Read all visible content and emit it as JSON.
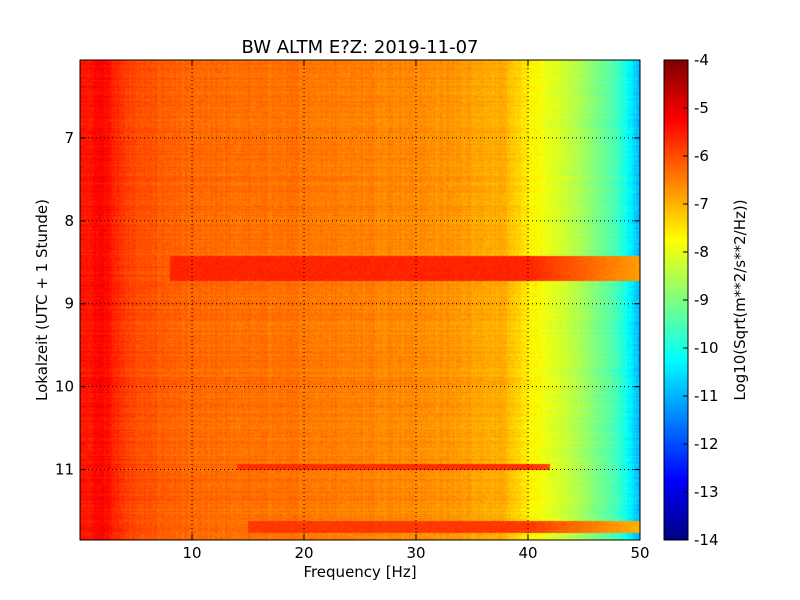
{
  "chart_data": {
    "type": "heatmap",
    "title": "BW ALTM E?Z: 2019-11-07",
    "xlabel": "Frequency [Hz]",
    "ylabel": "Lokalzeit (UTC + 1 Stunde)",
    "colorbar_label": "Log10(Sqrt(m**2/s**2/Hz))",
    "xlim": [
      0,
      50
    ],
    "ylim": [
      6.06,
      11.85
    ],
    "y_inverted": true,
    "x_ticks": [
      10,
      20,
      30,
      40,
      50
    ],
    "y_ticks": [
      7,
      8,
      9,
      10,
      11
    ],
    "color_range": [
      -14,
      -4
    ],
    "colorbar_ticks": [
      -4,
      -5,
      -6,
      -7,
      -8,
      -9,
      -10,
      -11,
      -12,
      -13,
      -14
    ],
    "colormap": "jet",
    "grid": true,
    "spectrum_profile": [
      {
        "f": 0,
        "value": -5.5
      },
      {
        "f": 1,
        "value": -5.4
      },
      {
        "f": 2,
        "value": -5.2
      },
      {
        "f": 3,
        "value": -5.6
      },
      {
        "f": 5,
        "value": -6.0
      },
      {
        "f": 10,
        "value": -6.3
      },
      {
        "f": 20,
        "value": -6.4
      },
      {
        "f": 30,
        "value": -6.6
      },
      {
        "f": 35,
        "value": -6.8
      },
      {
        "f": 38,
        "value": -7.0
      },
      {
        "f": 40,
        "value": -7.6
      },
      {
        "f": 42,
        "value": -8.0
      },
      {
        "f": 44,
        "value": -8.4
      },
      {
        "f": 46,
        "value": -9.0
      },
      {
        "f": 48,
        "value": -9.6
      },
      {
        "f": 49,
        "value": -10.3
      },
      {
        "f": 50,
        "value": -11.0
      }
    ],
    "bands": [
      {
        "t_start": 8.42,
        "t_end": 8.72,
        "f_start": 8,
        "f_end": 50,
        "value": -5.6
      },
      {
        "t_start": 10.93,
        "t_end": 11.0,
        "f_start": 14,
        "f_end": 42,
        "value": -5.7
      },
      {
        "t_start": 11.62,
        "t_end": 11.76,
        "f_start": 15,
        "f_end": 50,
        "value": -5.8
      }
    ]
  }
}
